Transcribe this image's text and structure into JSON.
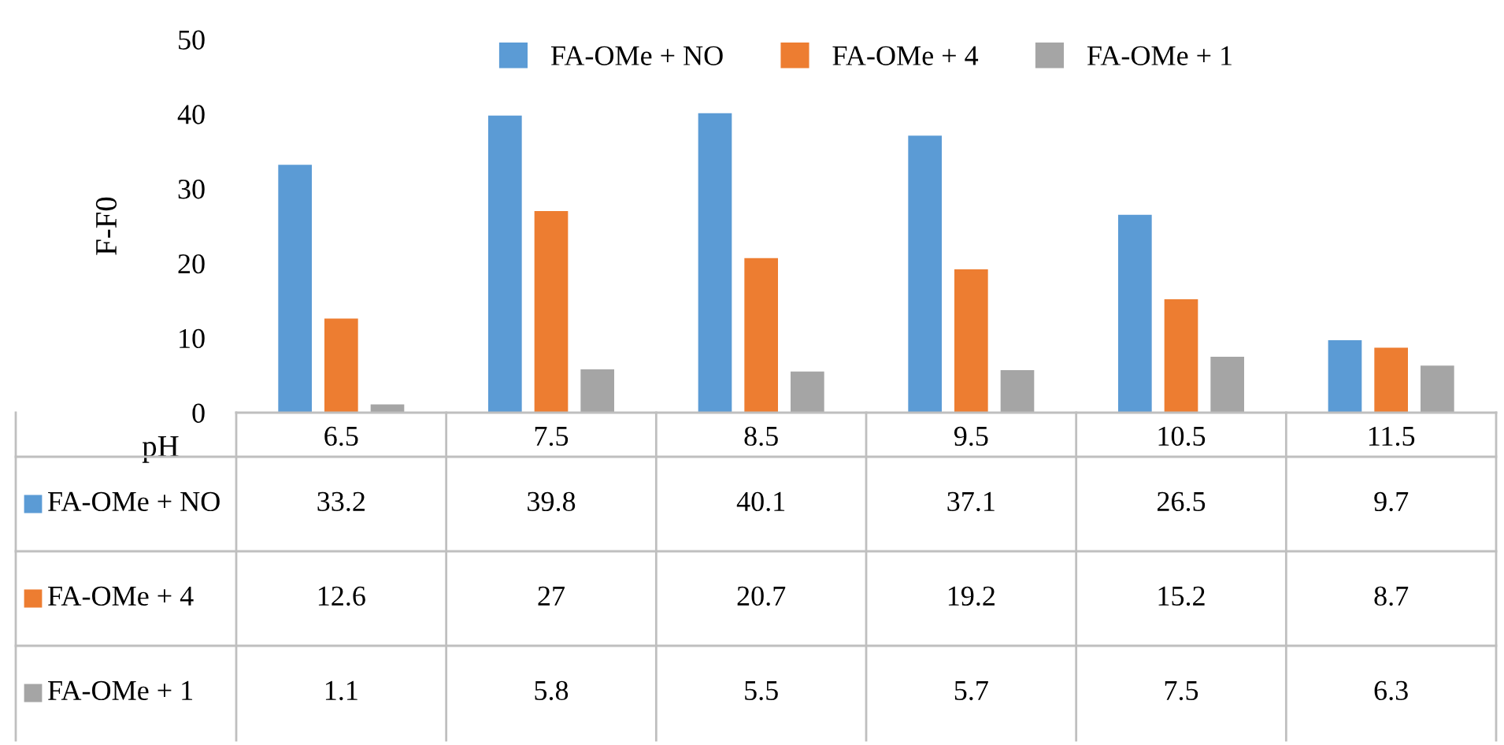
{
  "chart_data": {
    "type": "bar",
    "xlabel": "pH",
    "ylabel": "F-F0",
    "categories": [
      "6.5",
      "7.5",
      "8.5",
      "9.5",
      "10.5",
      "11.5"
    ],
    "series": [
      {
        "name": "FA-OMe + NO",
        "color": "#5b9bd5",
        "values": [
          33.2,
          39.8,
          40.1,
          37.1,
          26.5,
          9.7
        ]
      },
      {
        "name": "FA-OMe + 4",
        "color": "#ed7d31",
        "values": [
          12.6,
          27,
          20.7,
          19.2,
          15.2,
          8.7
        ]
      },
      {
        "name": "FA-OMe + 1",
        "color": "#a5a5a5",
        "values": [
          1.1,
          5.8,
          5.5,
          5.7,
          7.5,
          6.3
        ]
      }
    ],
    "ylim": [
      0,
      50
    ],
    "yticks": [
      0,
      10,
      20,
      30,
      40,
      50
    ],
    "grid": false,
    "legend": "top",
    "data_labels": true
  }
}
